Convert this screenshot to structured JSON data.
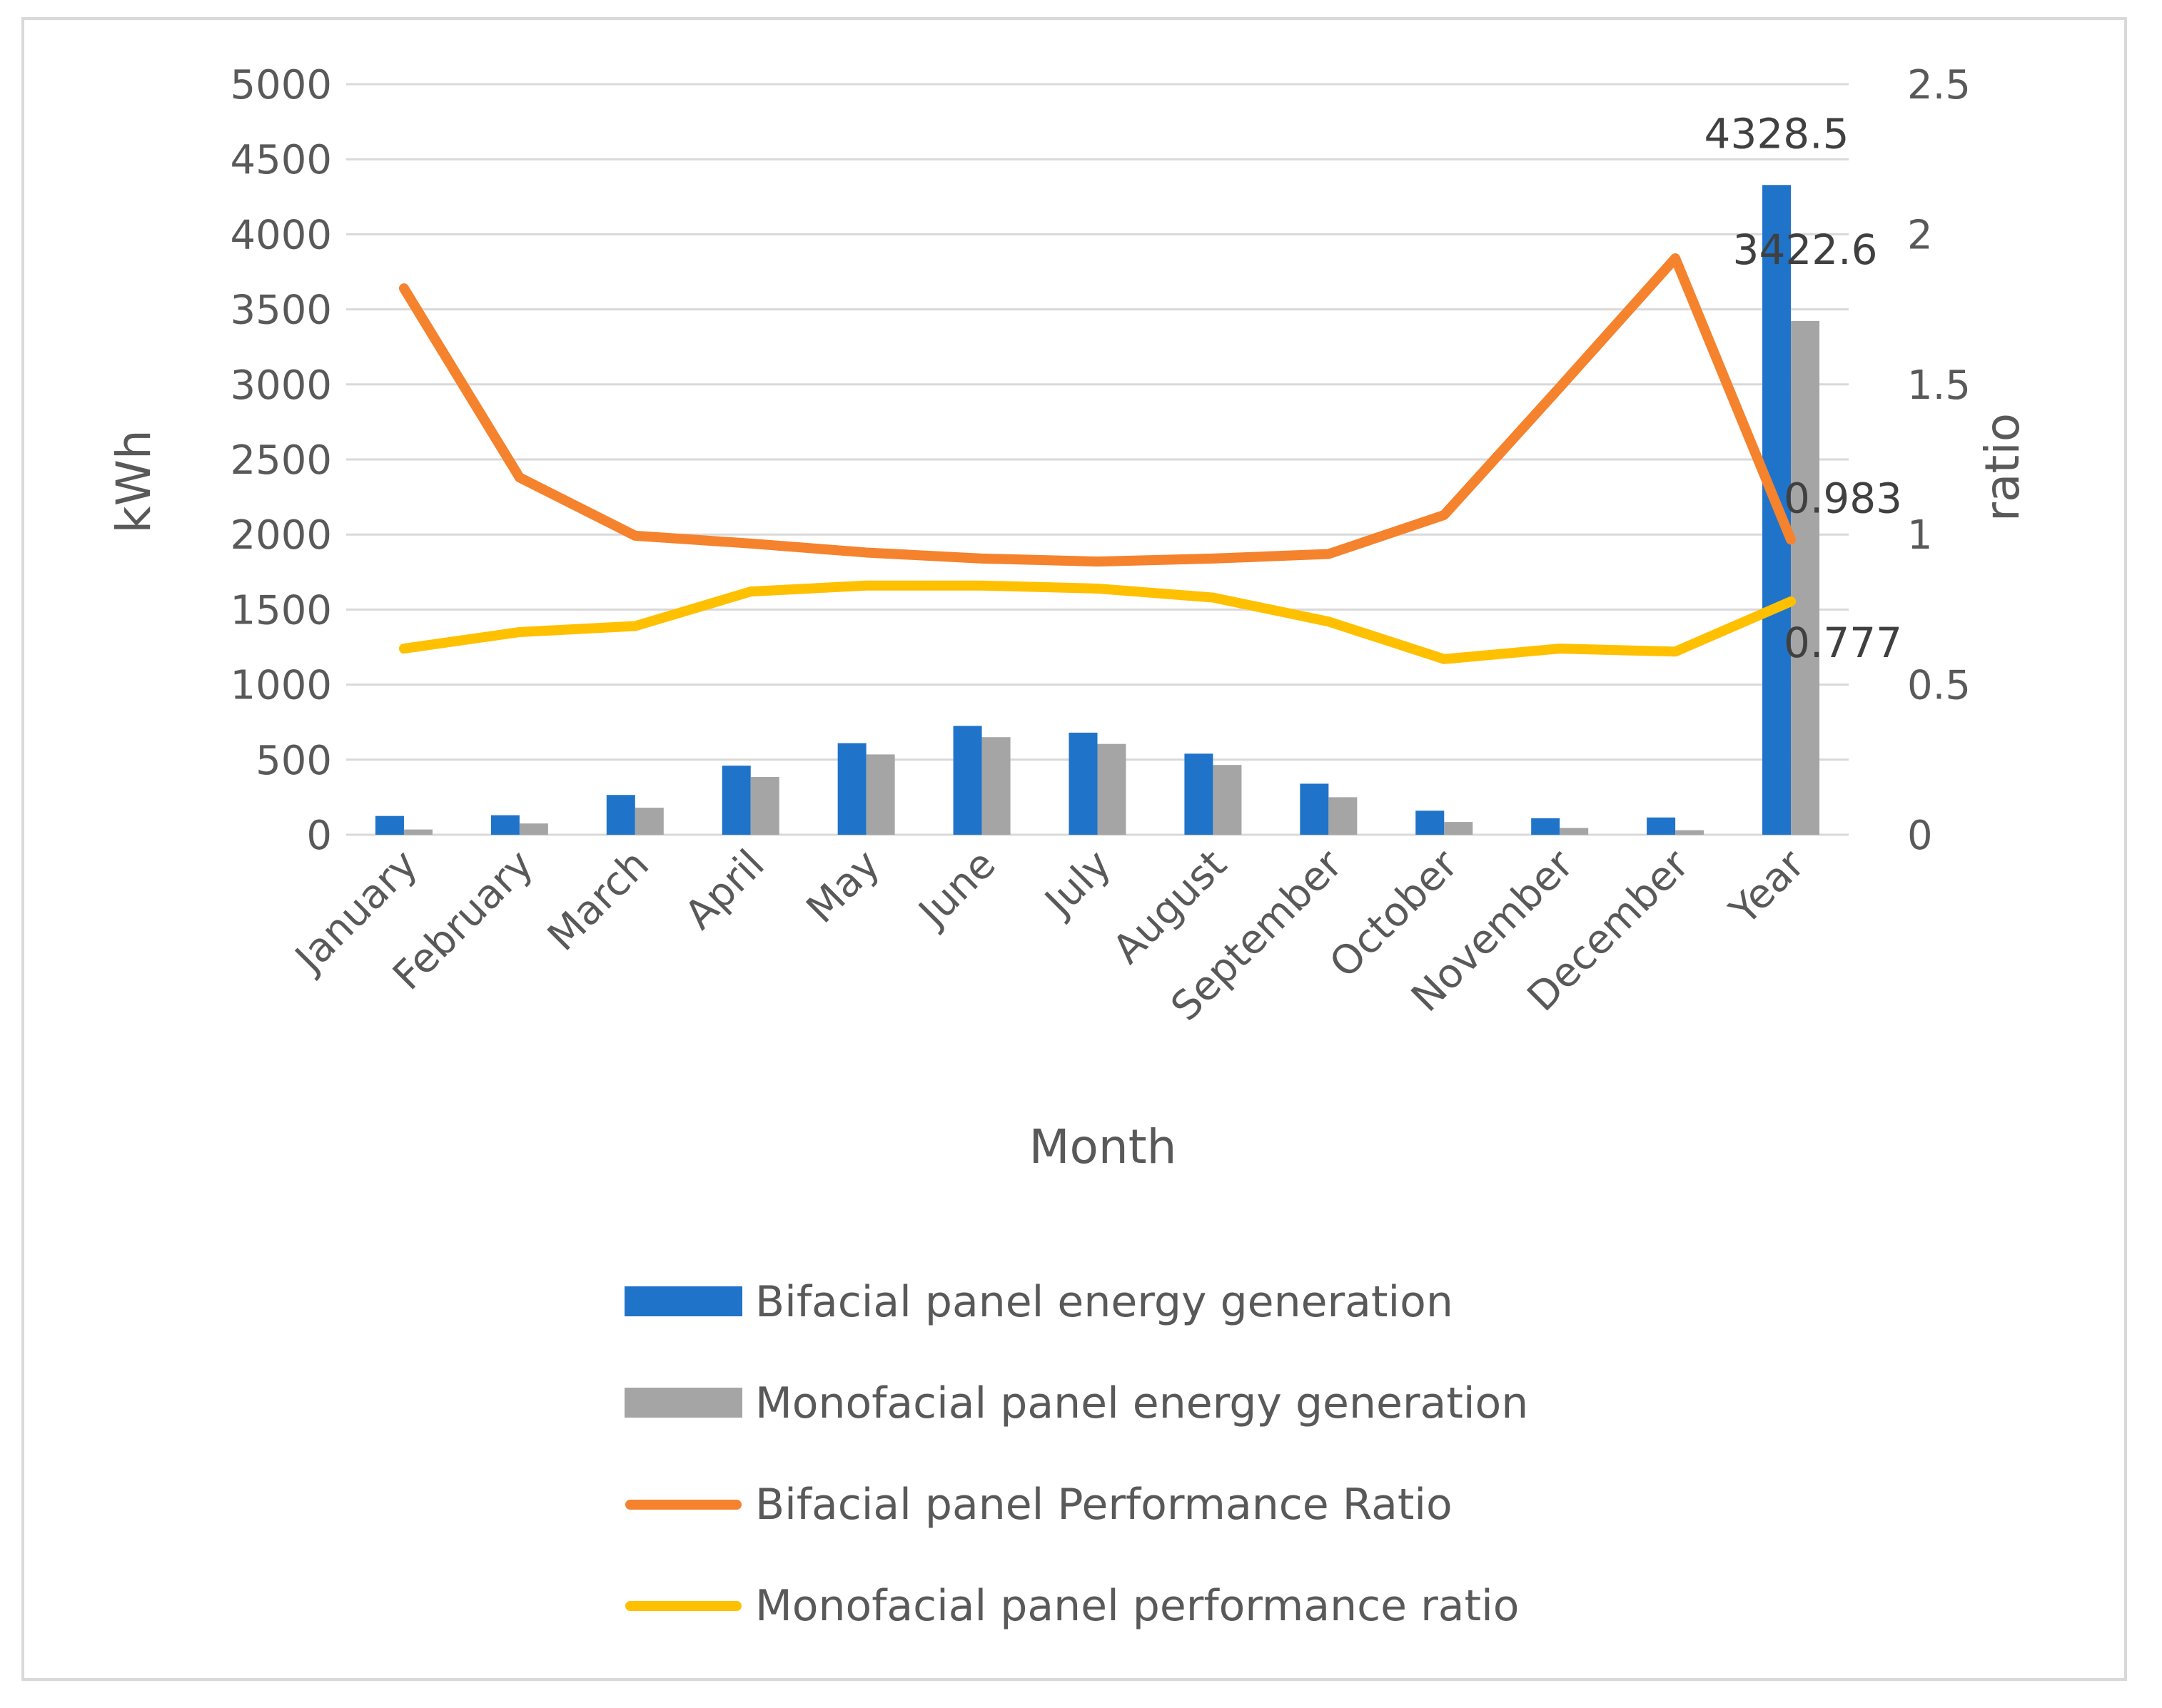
{
  "chart_data": {
    "type": "bar",
    "title": "",
    "xlabel": "Month",
    "ylabel": "kWh",
    "y2label": "ratio",
    "categories": [
      "January",
      "February",
      "March",
      "April",
      "May",
      "June",
      "July",
      "August",
      "September",
      "October",
      "November",
      "December",
      "Year"
    ],
    "ylim": [
      0,
      5000
    ],
    "y_ticks": [
      "0",
      "500",
      "1000",
      "1500",
      "2000",
      "2500",
      "3000",
      "3500",
      "4000",
      "4500",
      "5000"
    ],
    "y2lim": [
      0,
      2.5
    ],
    "y2_ticks": [
      "0",
      "0.5",
      "1",
      "1.5",
      "2",
      "2.5"
    ],
    "grid": true,
    "legend_position": "bottom",
    "series": [
      {
        "name": "Bifacial panel energy generation",
        "kind": "bar",
        "axis": "left",
        "color": "#1f73c9",
        "values": [
          125,
          130,
          265,
          460,
          610,
          725,
          680,
          540,
          340,
          160,
          110,
          115,
          4328.5
        ]
      },
      {
        "name": "Monofacial panel energy generation",
        "kind": "bar",
        "axis": "left",
        "color": "#a5a5a5",
        "values": [
          35,
          75,
          180,
          385,
          535,
          650,
          605,
          465,
          250,
          85,
          45,
          30,
          3422.6
        ]
      },
      {
        "name": "Bifacial panel Performance Ratio",
        "kind": "line",
        "axis": "right",
        "color": "#f5822d",
        "values": [
          1.82,
          1.19,
          0.996,
          0.97,
          0.94,
          0.92,
          0.91,
          0.92,
          0.935,
          1.065,
          1.49,
          1.92,
          0.983
        ]
      },
      {
        "name": "Monofacial panel performance ratio",
        "kind": "line",
        "axis": "right",
        "color": "#ffc000",
        "values": [
          0.62,
          0.675,
          0.695,
          0.81,
          0.83,
          0.83,
          0.82,
          0.79,
          0.71,
          0.585,
          0.62,
          0.61,
          0.777
        ]
      }
    ],
    "data_labels": [
      {
        "series": 0,
        "index": 12,
        "text": "4328.5"
      },
      {
        "series": 1,
        "index": 12,
        "text": "3422.6"
      },
      {
        "series": 2,
        "index": 12,
        "text": "0.983"
      },
      {
        "series": 3,
        "index": 12,
        "text": "0.777"
      }
    ]
  }
}
